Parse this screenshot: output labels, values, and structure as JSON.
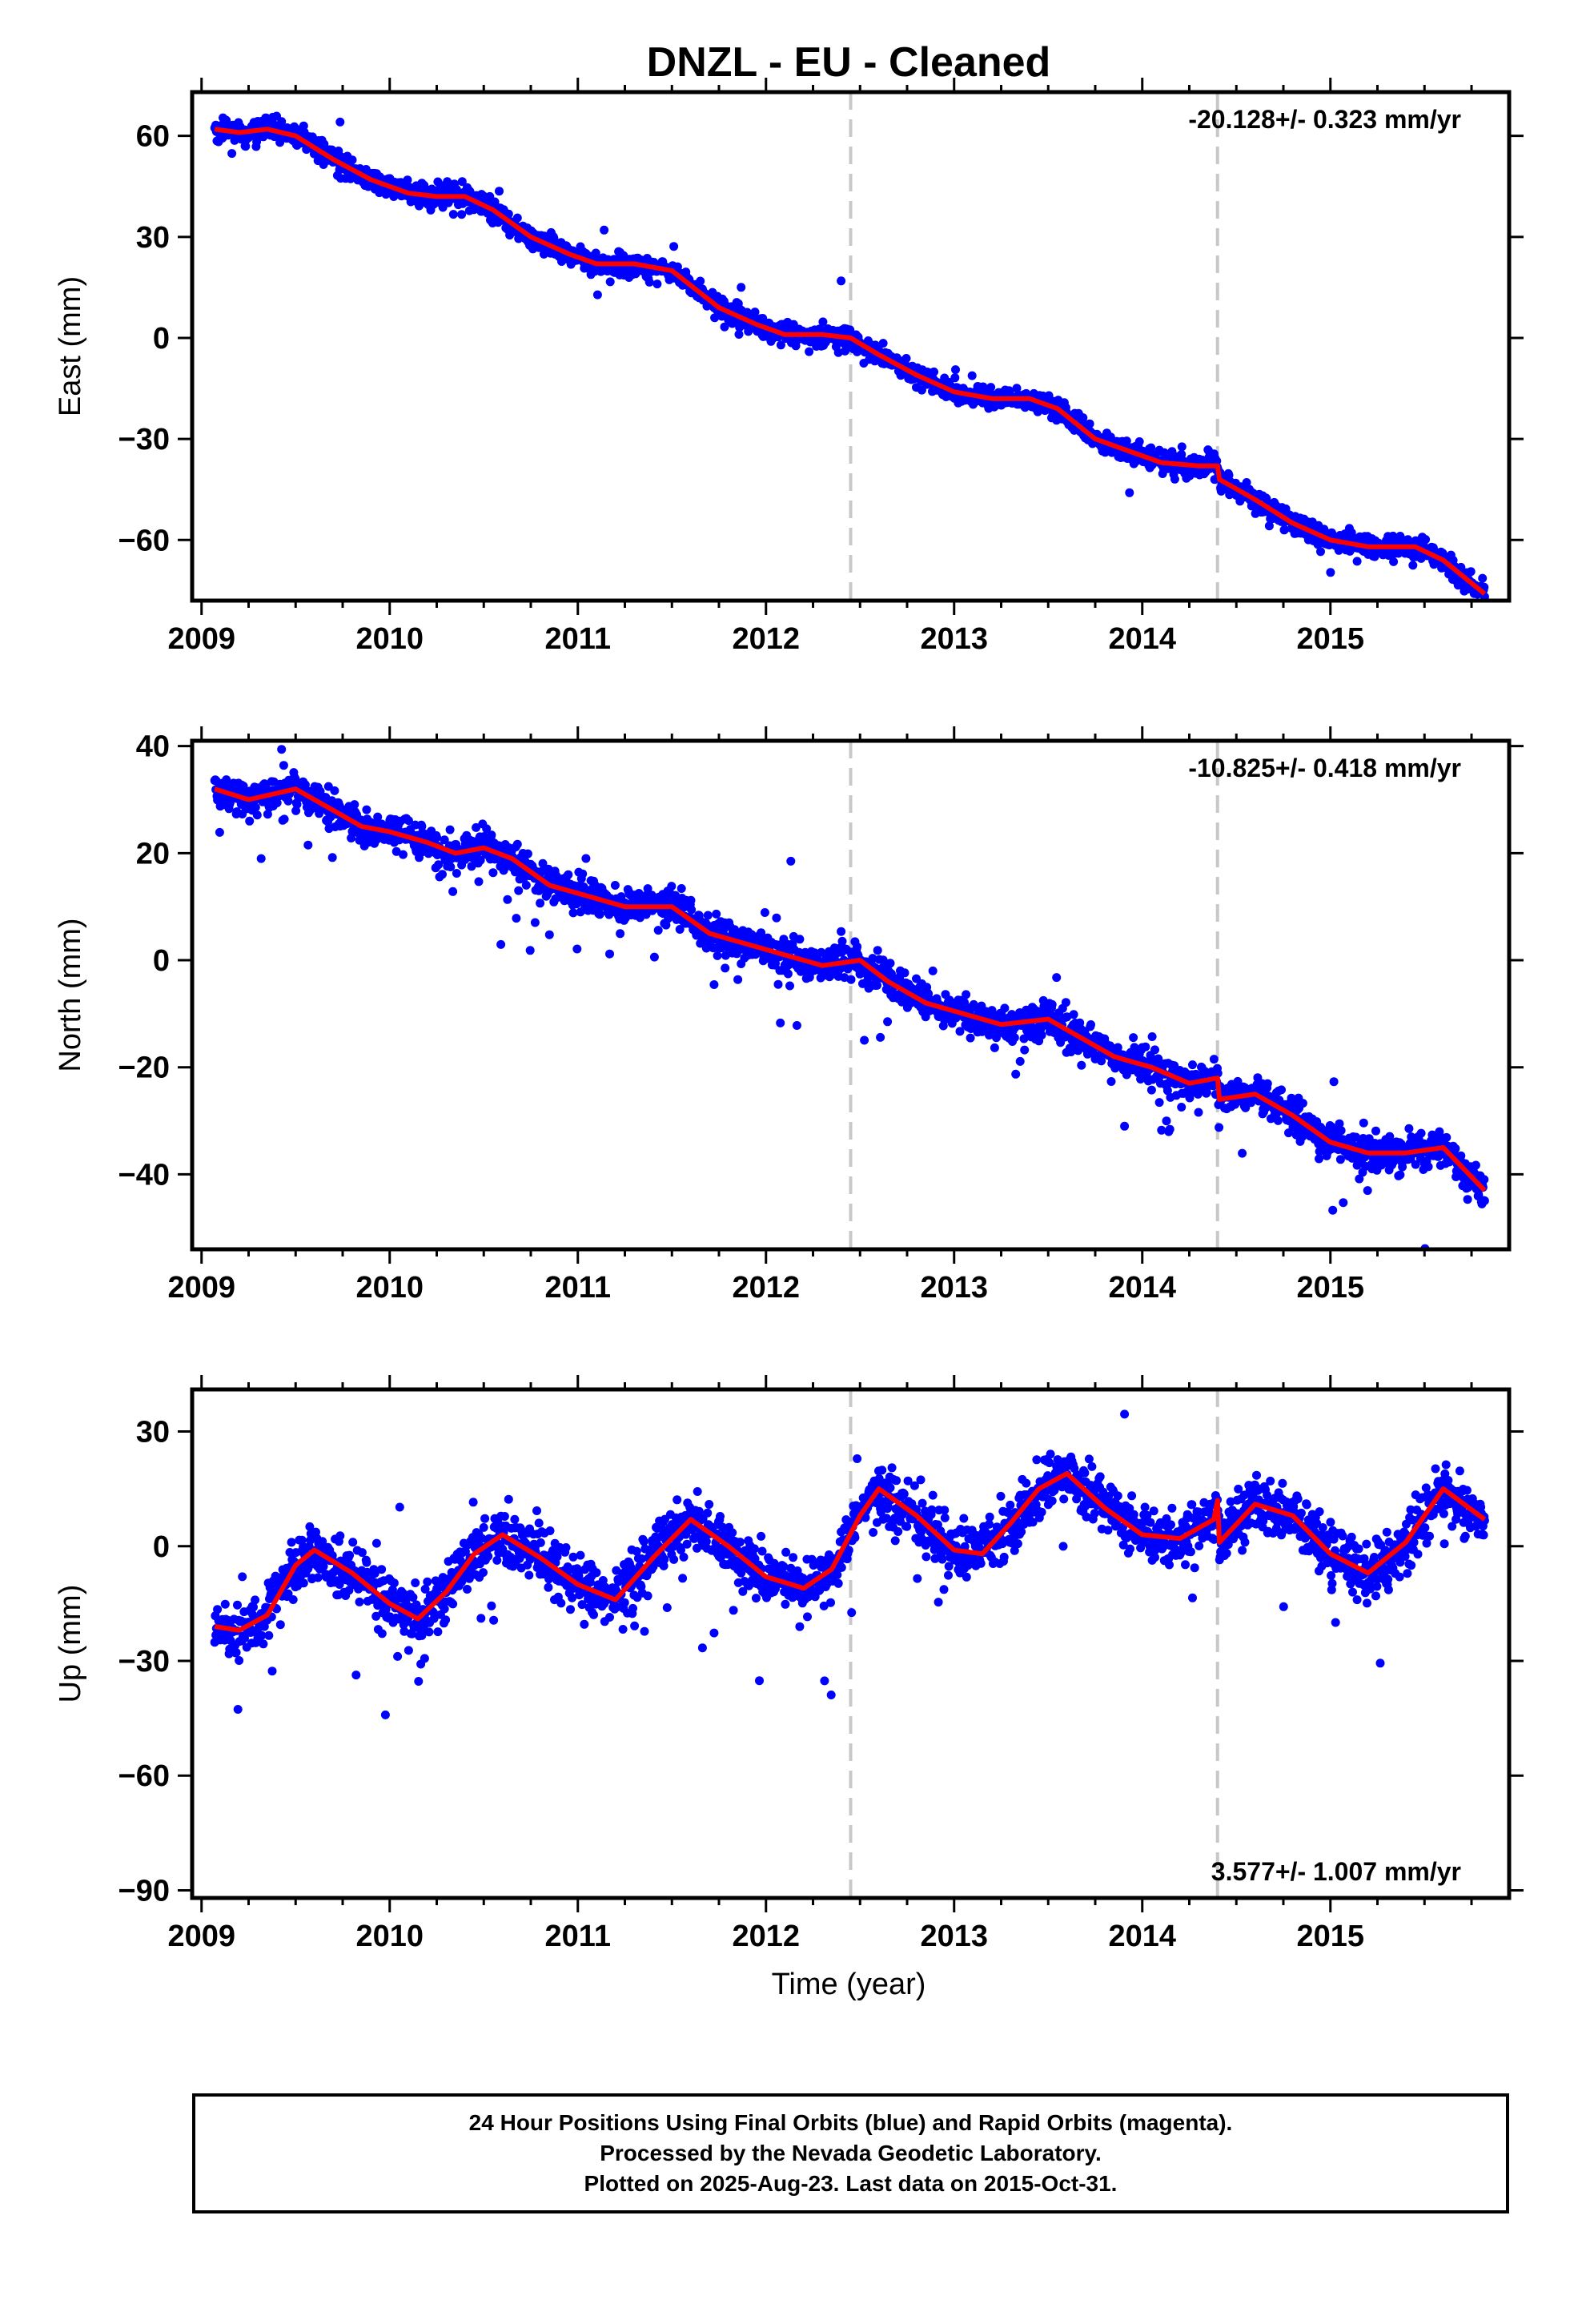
{
  "title": "DNZL  - EU - Cleaned",
  "footer": {
    "line1": "24 Hour Positions Using Final Orbits (blue) and Rapid Orbits (magenta).",
    "line2": "Processed by the Nevada Geodetic Laboratory.",
    "line3": "Plotted on 2025-Aug-23. Last data on 2015-Oct-31."
  },
  "colors": {
    "final_orbits": "#0000ff",
    "model_fit": "#ff0000",
    "equipment_change_lines": "#c8c8c8",
    "axes": "#000000"
  },
  "chart_data": [
    {
      "type": "scatter",
      "ylabel": "East (mm)",
      "xlabel": "",
      "rate_label": "-20.128+/- 0.323 mm/yr",
      "rate_position": "top-right",
      "xlim": [
        2008.95,
        2015.95
      ],
      "ylim": [
        -78,
        73
      ],
      "xticks": [
        "2009",
        "2010",
        "2011",
        "2012",
        "2013",
        "2014",
        "2015"
      ],
      "yticks": [
        "60",
        "30",
        "0",
        "−30",
        "−60"
      ],
      "ytick_values": [
        60,
        30,
        0,
        -30,
        -60
      ],
      "grid": false,
      "vertical_lines_x": [
        2012.45,
        2014.4
      ],
      "series": [
        {
          "role": "daily positions",
          "color": "#0000ff",
          "fit_x": [
            2009.07,
            2009.2,
            2009.35,
            2009.5,
            2009.7,
            2009.9,
            2010.1,
            2010.25,
            2010.4,
            2010.55,
            2010.75,
            2010.95,
            2011.1,
            2011.3,
            2011.5,
            2011.75,
            2011.95,
            2012.1,
            2012.3,
            2012.45,
            2012.6,
            2012.8,
            2013.0,
            2013.2,
            2013.4,
            2013.55,
            2013.75,
            2013.95,
            2014.1,
            2014.3,
            2014.4,
            2014.41,
            2014.6,
            2014.8,
            2015.0,
            2015.2,
            2015.45,
            2015.6,
            2015.82
          ],
          "fit_y": [
            62,
            61,
            62,
            60,
            53,
            47,
            43,
            42,
            42,
            38,
            30,
            25,
            22,
            22,
            20,
            9,
            4,
            1,
            1,
            0,
            -5,
            -11,
            -16,
            -18,
            -18,
            -21,
            -30,
            -34,
            -37,
            -38,
            -38,
            -42,
            -48,
            -55,
            -60,
            -62,
            -62,
            -66,
            -76
          ],
          "scatter_model": {
            "noise_sd": 1.6,
            "outlier_rate": 0.02,
            "outlier_sd": 6,
            "count": 2300
          }
        },
        {
          "role": "model fit",
          "color": "#ff0000"
        }
      ]
    },
    {
      "type": "scatter",
      "ylabel": "North (mm)",
      "xlabel": "",
      "rate_label": "-10.825+/- 0.418 mm/yr",
      "rate_position": "top-right",
      "xlim": [
        2008.95,
        2015.95
      ],
      "ylim": [
        -54,
        41
      ],
      "xticks": [
        "2009",
        "2010",
        "2011",
        "2012",
        "2013",
        "2014",
        "2015"
      ],
      "yticks": [
        "40",
        "20",
        "0",
        "−20",
        "−40"
      ],
      "ytick_values": [
        40,
        20,
        0,
        -20,
        -40
      ],
      "grid": false,
      "vertical_lines_x": [
        2012.45,
        2014.4
      ],
      "series": [
        {
          "role": "daily positions",
          "color": "#0000ff",
          "fit_x": [
            2009.07,
            2009.25,
            2009.5,
            2009.7,
            2009.85,
            2010.0,
            2010.2,
            2010.35,
            2010.5,
            2010.65,
            2010.85,
            2011.05,
            2011.25,
            2011.5,
            2011.7,
            2011.9,
            2012.1,
            2012.3,
            2012.5,
            2012.65,
            2012.85,
            2013.05,
            2013.25,
            2013.5,
            2013.65,
            2013.85,
            2014.05,
            2014.25,
            2014.4,
            2014.41,
            2014.6,
            2014.8,
            2015.0,
            2015.2,
            2015.4,
            2015.6,
            2015.82
          ],
          "fit_y": [
            32,
            30,
            32,
            28,
            25,
            24,
            22,
            20,
            21,
            19,
            14,
            12,
            10,
            10,
            5,
            3,
            1,
            -1,
            0,
            -4,
            -8,
            -10,
            -12,
            -11,
            -14,
            -18,
            -20,
            -23,
            -22,
            -26,
            -25,
            -29,
            -34,
            -36,
            -36,
            -35,
            -43
          ],
          "scatter_model": {
            "noise_sd": 1.6,
            "outlier_rate": 0.05,
            "outlier_sd": 7,
            "count": 2300
          }
        },
        {
          "role": "model fit",
          "color": "#ff0000"
        }
      ]
    },
    {
      "type": "scatter",
      "ylabel": "Up (mm)",
      "xlabel": "Time (year)",
      "rate_label": "3.577+/- 1.007 mm/yr",
      "rate_position": "bottom-right",
      "xlim": [
        2008.95,
        2015.95
      ],
      "ylim": [
        -92,
        41
      ],
      "xticks": [
        "2009",
        "2010",
        "2011",
        "2012",
        "2013",
        "2014",
        "2015"
      ],
      "yticks": [
        "30",
        "0",
        "−30",
        "−60",
        "−90"
      ],
      "ytick_values": [
        30,
        0,
        -30,
        -60,
        -90
      ],
      "grid": false,
      "vertical_lines_x": [
        2012.45,
        2014.4
      ],
      "series": [
        {
          "role": "daily positions",
          "color": "#0000ff",
          "fit_x": [
            2009.07,
            2009.2,
            2009.35,
            2009.5,
            2009.6,
            2009.8,
            2010.0,
            2010.15,
            2010.3,
            2010.45,
            2010.6,
            2010.8,
            2011.0,
            2011.2,
            2011.4,
            2011.6,
            2011.8,
            2012.0,
            2012.2,
            2012.35,
            2012.5,
            2012.6,
            2012.8,
            2013.0,
            2013.15,
            2013.3,
            2013.45,
            2013.6,
            2013.8,
            2014.0,
            2014.2,
            2014.38,
            2014.4,
            2014.41,
            2014.6,
            2014.8,
            2015.0,
            2015.2,
            2015.4,
            2015.6,
            2015.82
          ],
          "fit_y": [
            -21,
            -22,
            -18,
            -5,
            -1,
            -7,
            -15,
            -19,
            -12,
            -2,
            3,
            -3,
            -10,
            -14,
            -3,
            7,
            0,
            -8,
            -11,
            -6,
            8,
            15,
            8,
            -1,
            -2,
            6,
            15,
            19,
            10,
            3,
            2,
            7,
            12,
            1,
            11,
            8,
            -2,
            -7,
            1,
            15,
            7
          ],
          "scatter_model": {
            "noise_sd": 3.6,
            "outlier_rate": 0.04,
            "outlier_sd": 15,
            "count": 2300
          }
        },
        {
          "role": "model fit",
          "color": "#ff0000"
        }
      ]
    }
  ]
}
